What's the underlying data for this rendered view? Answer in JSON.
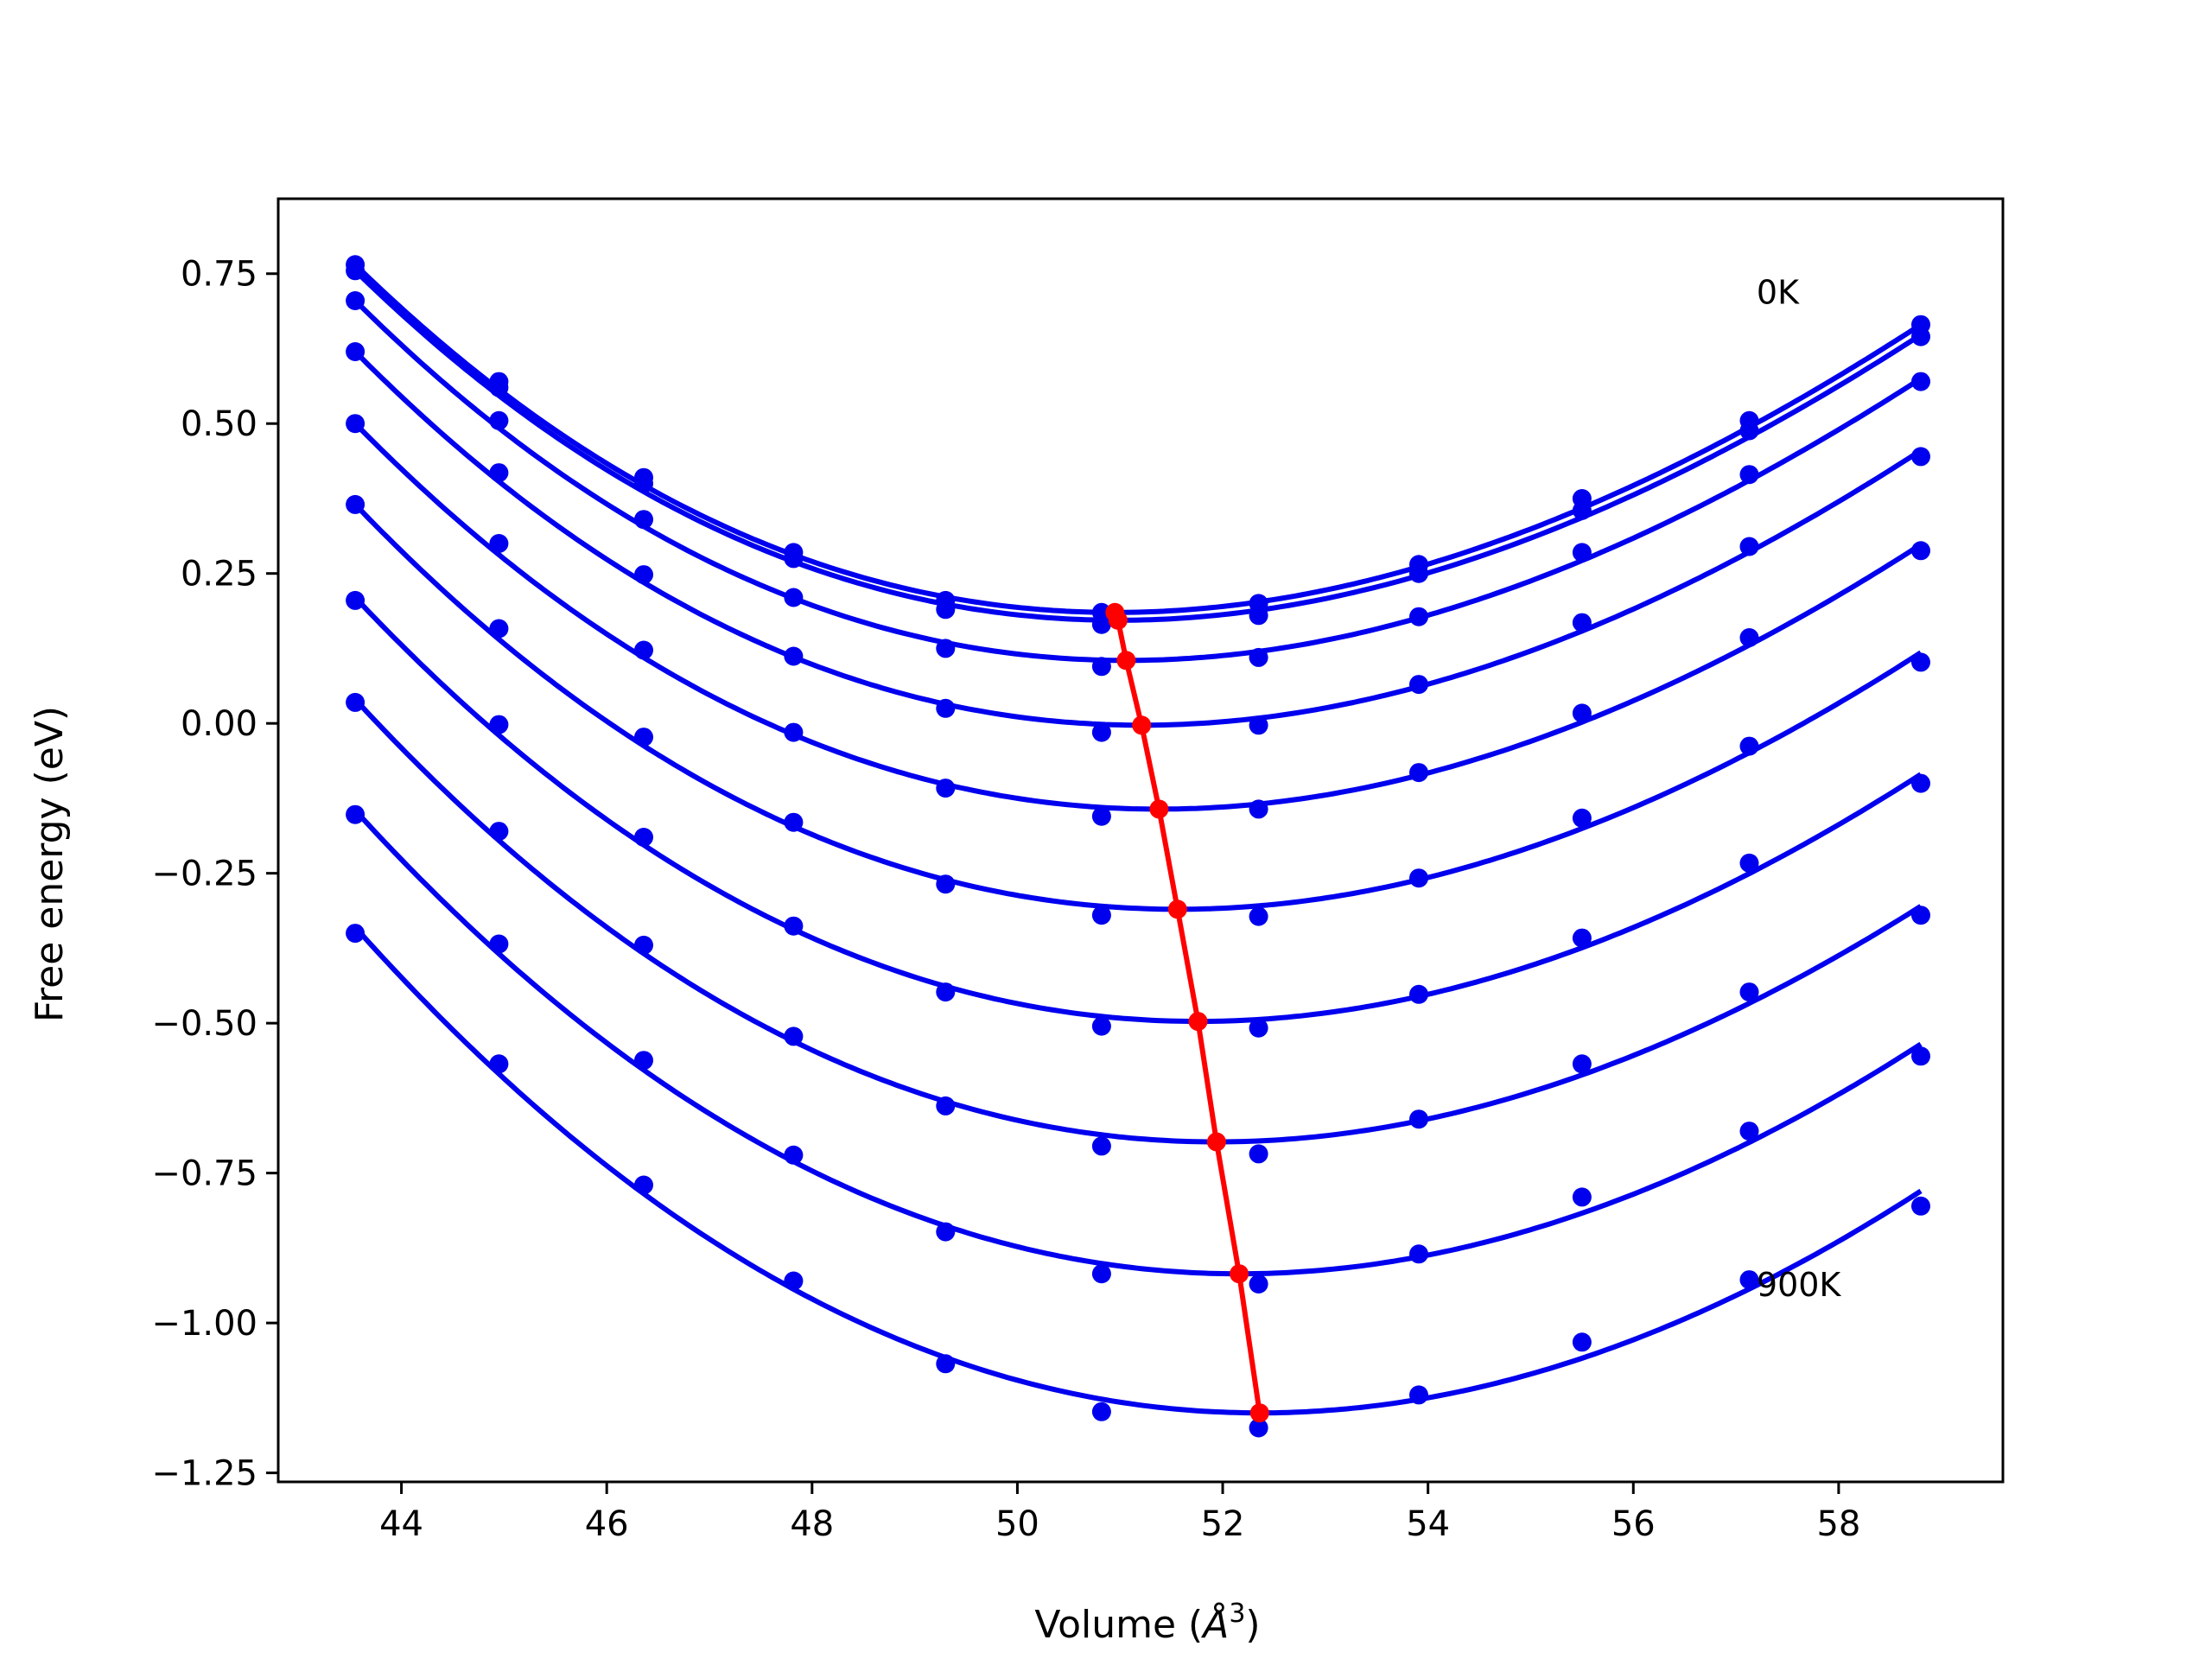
{
  "chart_data": {
    "type": "scatter",
    "xlabel_prefix": "Volume (",
    "xlabel_unit": "Å",
    "xlabel_exp": "3",
    "xlabel_suffix": ")",
    "ylabel": "Free energy (eV)",
    "xlim": [
      42.8,
      59.6
    ],
    "ylim": [
      -1.265,
      0.875
    ],
    "x_ticks": [
      44,
      46,
      48,
      50,
      52,
      54,
      56,
      58
    ],
    "y_ticks": [
      0.75,
      0.5,
      0.25,
      0.0,
      -0.25,
      -0.5,
      -0.75,
      -1.0,
      -1.25
    ],
    "x_tick_labels": [
      "44",
      "46",
      "48",
      "50",
      "52",
      "54",
      "56",
      "58"
    ],
    "y_tick_labels": [
      "0.75",
      "0.50",
      "0.25",
      "0.00",
      "−0.25",
      "−0.50",
      "−0.75",
      "−1.00",
      "−1.25"
    ],
    "grid": false,
    "annotations": [
      {
        "text": "0K",
        "x": 57.2,
        "y": 0.72
      },
      {
        "text": "900K",
        "x": 57.2,
        "y": -0.935
      }
    ],
    "volumes": [
      43.55,
      44.95,
      46.36,
      47.82,
      49.3,
      50.82,
      52.35,
      53.91,
      55.5,
      57.13,
      58.8
    ],
    "series": [
      {
        "color": "#0000ee",
        "fit_min": [
          50.95,
          0.185
        ],
        "fit_ends": [
          0.765,
          0.665
        ],
        "points": [
          0.765,
          0.57,
          0.41,
          0.285,
          0.205,
          0.185,
          0.2,
          0.265,
          0.375,
          0.505,
          0.665
        ]
      },
      {
        "color": "#0000ee",
        "fit_min": [
          50.98,
          0.172
        ],
        "fit_ends": [
          0.755,
          0.648
        ],
        "points": [
          0.755,
          0.56,
          0.4,
          0.275,
          0.19,
          0.165,
          0.18,
          0.25,
          0.355,
          0.488,
          0.645
        ]
      },
      {
        "color": "#0000ee",
        "fit_min": [
          51.06,
          0.105
        ],
        "fit_ends": [
          0.705,
          0.575
        ],
        "points": [
          0.705,
          0.505,
          0.34,
          0.21,
          0.125,
          0.095,
          0.11,
          0.178,
          0.285,
          0.415,
          0.57
        ]
      },
      {
        "color": "#0000ee",
        "fit_min": [
          51.21,
          -0.003
        ],
        "fit_ends": [
          0.62,
          0.455
        ],
        "points": [
          0.62,
          0.418,
          0.248,
          0.112,
          0.025,
          -0.015,
          -0.003,
          0.065,
          0.168,
          0.295,
          0.445
        ]
      },
      {
        "color": "#0000ee",
        "fit_min": [
          51.38,
          -0.143
        ],
        "fit_ends": [
          0.5,
          0.298
        ],
        "points": [
          0.5,
          0.3,
          0.122,
          -0.015,
          -0.108,
          -0.155,
          -0.143,
          -0.082,
          0.017,
          0.143,
          0.288
        ]
      },
      {
        "color": "#0000ee",
        "fit_min": [
          51.56,
          -0.31
        ],
        "fit_ends": [
          0.365,
          0.118
        ],
        "points": [
          0.365,
          0.158,
          -0.023,
          -0.165,
          -0.268,
          -0.32,
          -0.322,
          -0.258,
          -0.158,
          -0.038,
          0.102
        ]
      },
      {
        "color": "#0000ee",
        "fit_min": [
          51.76,
          -0.497
        ],
        "fit_ends": [
          0.21,
          -0.085
        ],
        "points": [
          0.205,
          -0.002,
          -0.19,
          -0.338,
          -0.448,
          -0.505,
          -0.508,
          -0.452,
          -0.358,
          -0.233,
          -0.1
        ]
      },
      {
        "color": "#0000ee",
        "fit_min": [
          51.94,
          -0.698
        ],
        "fit_ends": [
          0.04,
          -0.305
        ],
        "points": [
          0.035,
          -0.18,
          -0.37,
          -0.522,
          -0.638,
          -0.705,
          -0.718,
          -0.66,
          -0.568,
          -0.448,
          -0.32
        ]
      },
      {
        "color": "#0000ee",
        "fit_min": [
          52.16,
          -0.918
        ],
        "fit_ends": [
          -0.145,
          -0.535
        ],
        "points": [
          -0.152,
          -0.368,
          -0.562,
          -0.72,
          -0.848,
          -0.918,
          -0.935,
          -0.885,
          -0.79,
          -0.68,
          -0.555
        ]
      },
      {
        "color": "#0000ee",
        "fit_min": [
          52.36,
          -1.15
        ],
        "fit_ends": [
          -0.34,
          -0.78
        ],
        "points": [
          -0.35,
          -0.568,
          -0.77,
          -0.93,
          -1.068,
          -1.148,
          -1.175,
          -1.12,
          -1.032,
          -0.928,
          -0.805
        ]
      }
    ],
    "minima_line": {
      "color": "#ff0000",
      "x": [
        50.95,
        50.98,
        51.06,
        51.21,
        51.38,
        51.56,
        51.76,
        51.94,
        52.16,
        52.36
      ],
      "y": [
        0.185,
        0.172,
        0.105,
        -0.003,
        -0.143,
        -0.31,
        -0.497,
        -0.698,
        -0.918,
        -1.15
      ]
    }
  }
}
